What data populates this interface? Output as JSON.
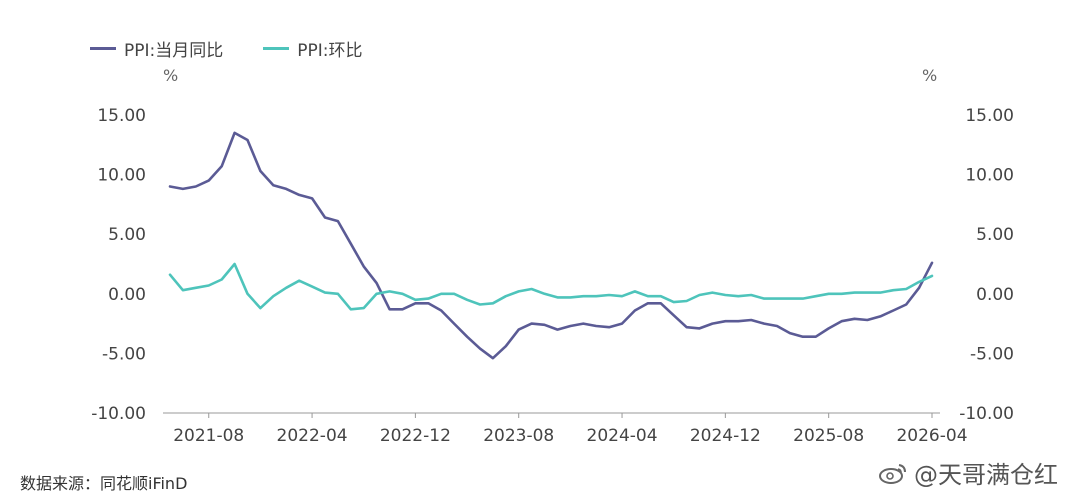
{
  "legend": [
    {
      "label": "PPI:当月同比",
      "color": "#5b5b95"
    },
    {
      "label": "PPI:环比",
      "color": "#4ec4bb"
    }
  ],
  "unit_left": "%",
  "unit_right": "%",
  "source": "数据来源：同花顺iFinD",
  "watermark": "@天哥满仓红",
  "chart_data": {
    "type": "line",
    "y_left": {
      "range": [
        -10,
        15
      ],
      "ticks": [
        "15.00",
        "10.00",
        "5.00",
        "0.00",
        "-5.00",
        "-10.00"
      ]
    },
    "y_right": {
      "range": [
        -10,
        15
      ],
      "ticks": [
        "15.00",
        "10.00",
        "5.00",
        "0.00",
        "-5.00",
        "-10.00"
      ]
    },
    "x_range": [
      "2021-05",
      "2026-04"
    ],
    "x_tick_labels": [
      "2021-08",
      "2022-04",
      "2022-12",
      "2023-08",
      "2024-04",
      "2024-12",
      "2025-08",
      "2026-04"
    ],
    "x": [
      "2021-05",
      "2021-06",
      "2021-07",
      "2021-08",
      "2021-09",
      "2021-10",
      "2021-11",
      "2021-12",
      "2022-01",
      "2022-02",
      "2022-03",
      "2022-04",
      "2022-05",
      "2022-06",
      "2022-07",
      "2022-08",
      "2022-09",
      "2022-10",
      "2022-11",
      "2022-12",
      "2023-01",
      "2023-02",
      "2023-03",
      "2023-04",
      "2023-05",
      "2023-06",
      "2023-07",
      "2023-08",
      "2023-09",
      "2023-10",
      "2023-11",
      "2023-12",
      "2024-01",
      "2024-02",
      "2024-03",
      "2024-04",
      "2024-05",
      "2024-06",
      "2024-07",
      "2024-08",
      "2024-09",
      "2024-10",
      "2024-11",
      "2024-12",
      "2025-01",
      "2025-02",
      "2025-03",
      "2025-04",
      "2025-05",
      "2025-06",
      "2025-07",
      "2025-08",
      "2025-09",
      "2025-10",
      "2025-11",
      "2025-12",
      "2026-01",
      "2026-02",
      "2026-03",
      "2026-04"
    ],
    "series": [
      {
        "name": "PPI:当月同比",
        "axis": "left",
        "color": "#5b5b95",
        "values": [
          9.0,
          8.8,
          9.0,
          9.5,
          10.7,
          13.5,
          12.9,
          10.3,
          9.1,
          8.8,
          8.3,
          8.0,
          6.4,
          6.1,
          4.2,
          2.3,
          0.9,
          -1.3,
          -1.3,
          -0.8,
          -0.8,
          -1.4,
          -2.5,
          -3.6,
          -4.6,
          -5.4,
          -4.4,
          -3.0,
          -2.5,
          -2.6,
          -3.0,
          -2.7,
          -2.5,
          -2.7,
          -2.8,
          -2.5,
          -1.4,
          -0.8,
          -0.8,
          -1.8,
          -2.8,
          -2.9,
          -2.5,
          -2.3,
          -2.3,
          -2.2,
          -2.5,
          -2.7,
          -3.3,
          -3.6,
          -3.6,
          -2.9,
          -2.3,
          -2.1,
          -2.2,
          -1.9,
          -1.4,
          -0.9,
          0.5,
          2.6
        ]
      },
      {
        "name": "PPI:环比",
        "axis": "right",
        "color": "#4ec4bb",
        "values": [
          1.6,
          0.3,
          0.5,
          0.7,
          1.2,
          2.5,
          0.0,
          -1.2,
          -0.2,
          0.5,
          1.1,
          0.6,
          0.1,
          0.0,
          -1.3,
          -1.2,
          0.0,
          0.2,
          0.0,
          -0.5,
          -0.4,
          0.0,
          0.0,
          -0.5,
          -0.9,
          -0.8,
          -0.2,
          0.2,
          0.4,
          0.0,
          -0.3,
          -0.3,
          -0.2,
          -0.2,
          -0.1,
          -0.2,
          0.2,
          -0.2,
          -0.2,
          -0.7,
          -0.6,
          -0.1,
          0.1,
          -0.1,
          -0.2,
          -0.1,
          -0.4,
          -0.4,
          -0.4,
          -0.4,
          -0.2,
          0.0,
          0.0,
          0.1,
          0.1,
          0.1,
          0.3,
          0.4,
          1.0,
          1.5
        ]
      }
    ]
  }
}
